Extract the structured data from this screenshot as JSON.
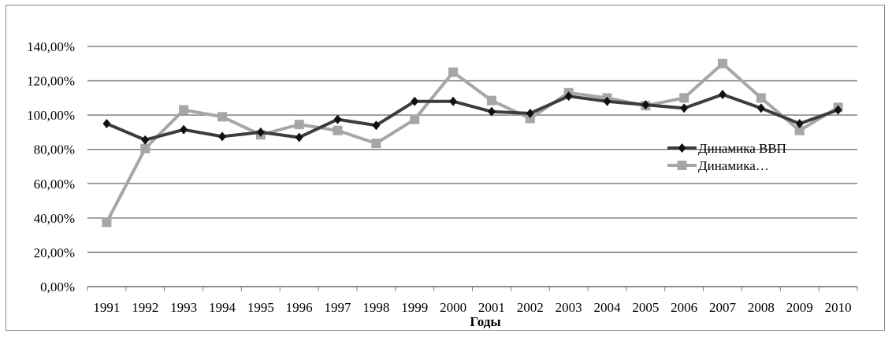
{
  "chart_data": {
    "type": "line",
    "title": "",
    "xlabel": "Годы",
    "ylabel": "",
    "categories": [
      "1991",
      "1992",
      "1993",
      "1994",
      "1995",
      "1996",
      "1997",
      "1998",
      "1999",
      "2000",
      "2001",
      "2002",
      "2003",
      "2004",
      "2005",
      "2006",
      "2007",
      "2008",
      "2009",
      "2010"
    ],
    "ylim": [
      0,
      140
    ],
    "y_ticks": [
      "0,00%",
      "20,00%",
      "40,00%",
      "60,00%",
      "80,00%",
      "100,00%",
      "120,00%",
      "140,00%"
    ],
    "grid": "horizontal",
    "legend": "right",
    "series": [
      {
        "name": "Динамика ВВП",
        "color": "#3c3c3c",
        "marker": "diamond",
        "values": [
          95,
          85.5,
          91.5,
          87.5,
          90,
          87,
          97.5,
          94,
          108,
          108,
          102,
          101,
          111,
          108,
          106,
          104,
          112,
          104,
          95,
          103
        ]
      },
      {
        "name": "Динамика…",
        "color": "#a6a6a6",
        "marker": "square",
        "values": [
          37.5,
          80.5,
          103,
          99,
          88.5,
          94.5,
          91,
          83.5,
          97.5,
          125,
          108.5,
          98,
          113,
          110,
          105.5,
          110,
          130,
          110,
          91,
          104.5
        ]
      }
    ]
  }
}
